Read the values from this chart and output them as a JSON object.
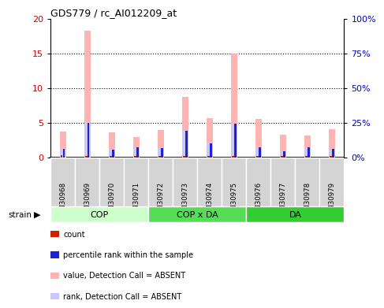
{
  "title": "GDS779 / rc_AI012209_at",
  "samples": [
    "GSM30968",
    "GSM30969",
    "GSM30970",
    "GSM30971",
    "GSM30972",
    "GSM30973",
    "GSM30974",
    "GSM30975",
    "GSM30976",
    "GSM30977",
    "GSM30978",
    "GSM30979"
  ],
  "value_absent": [
    3.7,
    18.2,
    3.6,
    2.9,
    4.0,
    8.7,
    5.6,
    15.0,
    5.5,
    3.3,
    3.2,
    4.1
  ],
  "rank_absent": [
    1.2,
    5.0,
    1.1,
    1.5,
    1.3,
    3.8,
    2.0,
    4.8,
    1.4,
    0.9,
    1.4,
    1.2
  ],
  "count_red": [
    0.35,
    0.25,
    0.25,
    0.22,
    0.22,
    0.22,
    0.22,
    0.22,
    0.22,
    0.22,
    0.22,
    0.22
  ],
  "percentile_blue": [
    1.2,
    5.0,
    1.1,
    1.5,
    1.3,
    3.8,
    2.0,
    4.8,
    1.4,
    0.9,
    1.4,
    1.2
  ],
  "ylim": [
    0,
    20
  ],
  "yticks": [
    0,
    5,
    10,
    15,
    20
  ],
  "ylim_right": [
    0,
    100
  ],
  "yticks_right": [
    0,
    25,
    50,
    75,
    100
  ],
  "color_value_absent": "#ffb3b3",
  "color_rank_absent": "#c8c8ff",
  "color_count": "#cc2200",
  "color_percentile": "#2222cc",
  "group_info": [
    {
      "name": "COP",
      "start": 0,
      "end": 3,
      "color": "#ccffcc"
    },
    {
      "name": "COP x DA",
      "start": 4,
      "end": 7,
      "color": "#55dd55"
    },
    {
      "name": "DA",
      "start": 8,
      "end": 11,
      "color": "#33cc33"
    }
  ],
  "group_label": "strain",
  "axis_color_left": "#cc0000",
  "axis_color_right": "#0000cc",
  "sample_box_color": "#d4d4d4",
  "wide_bar_width": 0.25,
  "narrow_bar_width": 0.08
}
